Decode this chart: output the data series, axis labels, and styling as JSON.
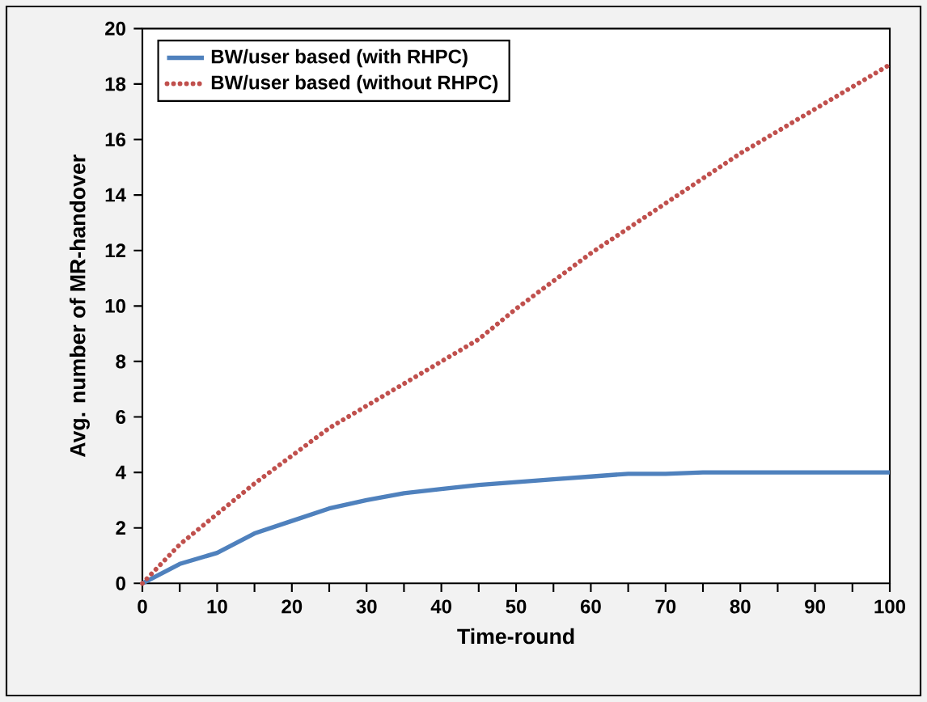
{
  "chart_data": {
    "type": "line",
    "xlabel": "Time-round",
    "ylabel": "Avg. number of MR-handover",
    "x": [
      0,
      5,
      10,
      15,
      20,
      25,
      30,
      35,
      40,
      45,
      50,
      55,
      60,
      65,
      70,
      75,
      80,
      90,
      100
    ],
    "series": [
      {
        "name": "BW/user based (with RHPC)",
        "color": "#4f81bd",
        "line_style": "solid",
        "values": [
          0,
          0.7,
          1.1,
          1.8,
          2.25,
          2.7,
          3.0,
          3.25,
          3.4,
          3.55,
          3.65,
          3.75,
          3.85,
          3.95,
          3.95,
          4.0,
          4.0,
          4.0,
          4.0
        ]
      },
      {
        "name": "BW/user based (without RHPC)",
        "color": "#c0504d",
        "line_style": "dotted",
        "values": [
          0,
          1.4,
          2.5,
          3.6,
          4.6,
          5.6,
          6.4,
          7.2,
          8.0,
          8.8,
          9.9,
          10.9,
          11.9,
          12.8,
          13.7,
          14.6,
          15.5,
          17.1,
          18.7
        ]
      }
    ],
    "xlim": [
      0,
      100
    ],
    "ylim": [
      0,
      20
    ],
    "xticks": [
      0,
      10,
      20,
      30,
      40,
      50,
      60,
      70,
      80,
      90,
      100
    ],
    "yticks": [
      0,
      2,
      4,
      6,
      8,
      10,
      12,
      14,
      16,
      18,
      20
    ],
    "grid": false,
    "legend": "top left"
  }
}
